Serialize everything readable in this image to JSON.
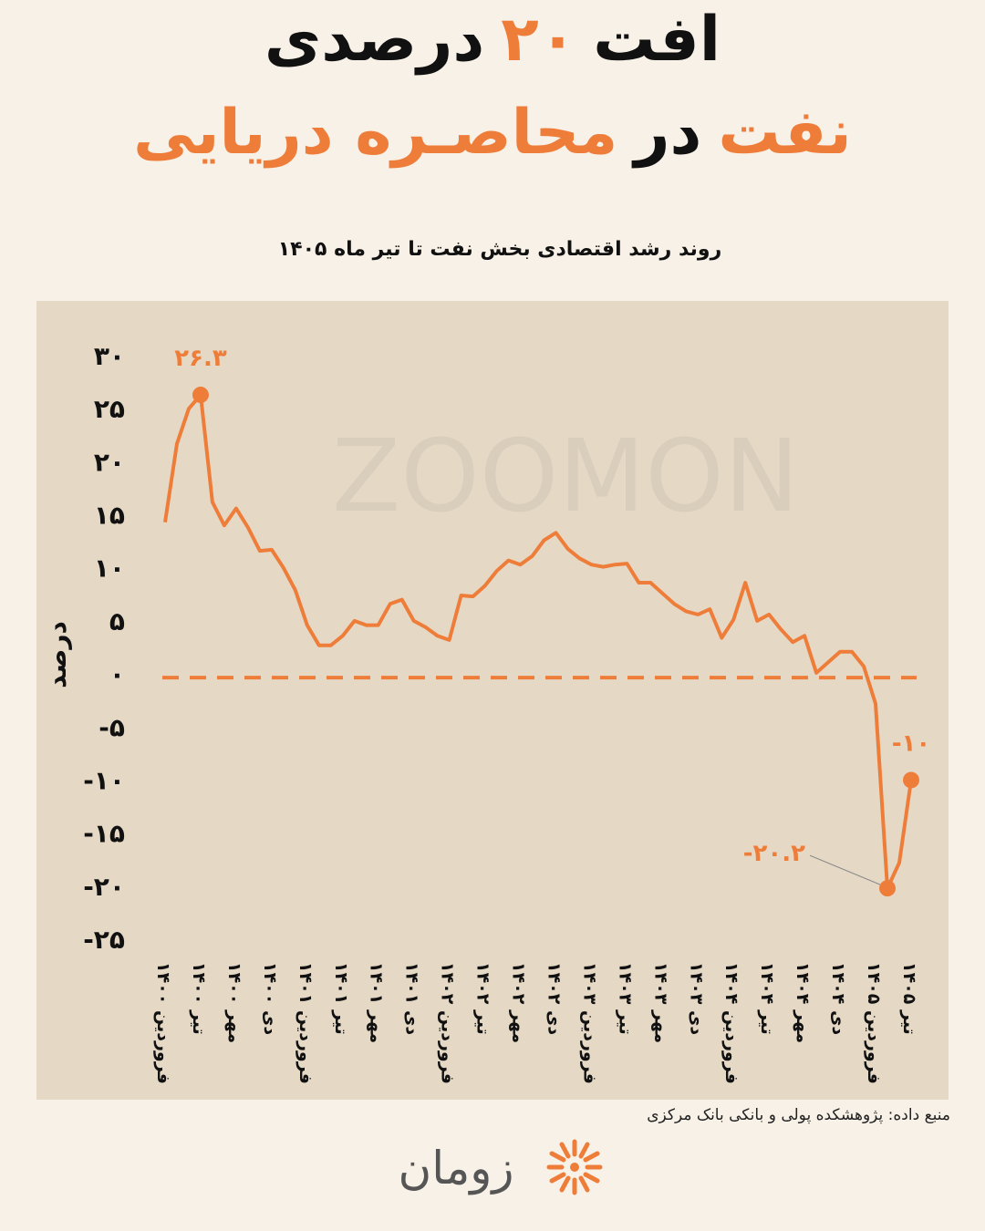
{
  "header": {
    "title_lines": [
      [
        {
          "text": "افت",
          "color": "#111111"
        },
        {
          "text": "۲۰",
          "color": "#ef7d3a"
        },
        {
          "text": "درصدی",
          "color": "#111111"
        }
      ],
      [
        {
          "text": "نفت",
          "color": "#ef7d3a"
        },
        {
          "text": "در",
          "color": "#111111"
        },
        {
          "text": "محاصـره دریایی",
          "color": "#ef7d3a"
        }
      ]
    ]
  },
  "chart_data": {
    "type": "line",
    "title": "روند رشد اقتصادی بخش نفت تا تیر ماه ۱۴۰۵",
    "y_label": "درصد",
    "color": "#ef7d3a",
    "categories": [
      "فروردین ۱۴۰۰",
      null,
      null,
      "تیر ۱۴۰۰",
      null,
      null,
      "مهر ۱۴۰۰",
      null,
      null,
      "دی ۱۴۰۰",
      null,
      null,
      "فروردین ۱۴۰۱",
      null,
      null,
      "تیر ۱۴۰۱",
      null,
      null,
      "مهر ۱۴۰۱",
      null,
      null,
      "دی ۱۴۰۱",
      null,
      null,
      "فروردین ۱۴۰۲",
      null,
      null,
      "تیر ۱۴۰۲",
      null,
      null,
      "مهر ۱۴۰۲",
      null,
      null,
      "دی ۱۴۰۲",
      null,
      null,
      "فروردین ۱۴۰۳",
      null,
      null,
      "تیر ۱۴۰۳",
      null,
      null,
      "مهر ۱۴۰۳",
      null,
      null,
      "دی ۱۴۰۳",
      null,
      null,
      "فروردین ۱۴۰۴",
      null,
      null,
      "تیر ۱۴۰۴",
      null,
      null,
      "مهر ۱۴۰۴",
      null,
      null,
      "دی ۱۴۰۴",
      null,
      null,
      "فروردین ۱۴۰۵",
      null,
      null,
      "تیر ۱۴۰۵"
    ],
    "values": [
      14.3,
      21.7,
      25,
      26.3,
      16.2,
      14,
      15.6,
      13.8,
      11.6,
      11.7,
      10,
      7.9,
      4.6,
      2.7,
      2.7,
      3.6,
      5,
      4.6,
      4.6,
      6.6,
      7,
      5,
      4.4,
      3.6,
      3.2,
      7.4,
      7.3,
      8.3,
      9.7,
      10.7,
      10.3,
      11.1,
      12.6,
      13.3,
      11.8,
      10.9,
      10.3,
      10.1,
      10.3,
      10.4,
      8.6,
      8.6,
      7.6,
      6.6,
      5.9,
      5.6,
      6.1,
      3.4,
      5.1,
      8.6,
      5,
      5.6,
      4.2,
      3,
      3.6,
      0.1,
      1.1,
      2.1,
      2.1,
      0.7,
      -2.8,
      -20.2,
      -17.8,
      -10
    ],
    "value_labels": [
      null,
      null,
      null,
      "۲۶.۳",
      null,
      null,
      null,
      null,
      null,
      null,
      null,
      null,
      null,
      null,
      null,
      null,
      null,
      null,
      null,
      null,
      null,
      null,
      null,
      null,
      null,
      null,
      null,
      null,
      null,
      null,
      null,
      null,
      null,
      null,
      null,
      null,
      null,
      null,
      null,
      null,
      null,
      null,
      null,
      null,
      null,
      null,
      null,
      null,
      null,
      null,
      null,
      null,
      null,
      null,
      null,
      null,
      null,
      null,
      null,
      null,
      null,
      "-۲۰.۲",
      null,
      "-۱۰"
    ],
    "ylim": [
      -25,
      30
    ],
    "yticks": [
      {
        "value": 30,
        "label": "۳۰"
      },
      {
        "value": 25,
        "label": "۲۵"
      },
      {
        "value": 20,
        "label": "۲۰"
      },
      {
        "value": 15,
        "label": "۱۵"
      },
      {
        "value": 10,
        "label": "۱۰"
      },
      {
        "value": 5,
        "label": "۵"
      },
      {
        "value": 0,
        "label": "۰"
      },
      {
        "value": -5,
        "label": "-۵"
      },
      {
        "value": -10,
        "label": "-۱۰"
      },
      {
        "value": -15,
        "label": "-۱۵"
      },
      {
        "value": -20,
        "label": "-۲۰"
      },
      {
        "value": -25,
        "label": "-۲۵"
      }
    ],
    "zero_line": true,
    "grid": false
  },
  "watermark": "ZOOMON",
  "footer": {
    "source": "منبع داده: پژوهشکده پولی و بانکی بانک مرکزی",
    "logo": "زومان"
  }
}
